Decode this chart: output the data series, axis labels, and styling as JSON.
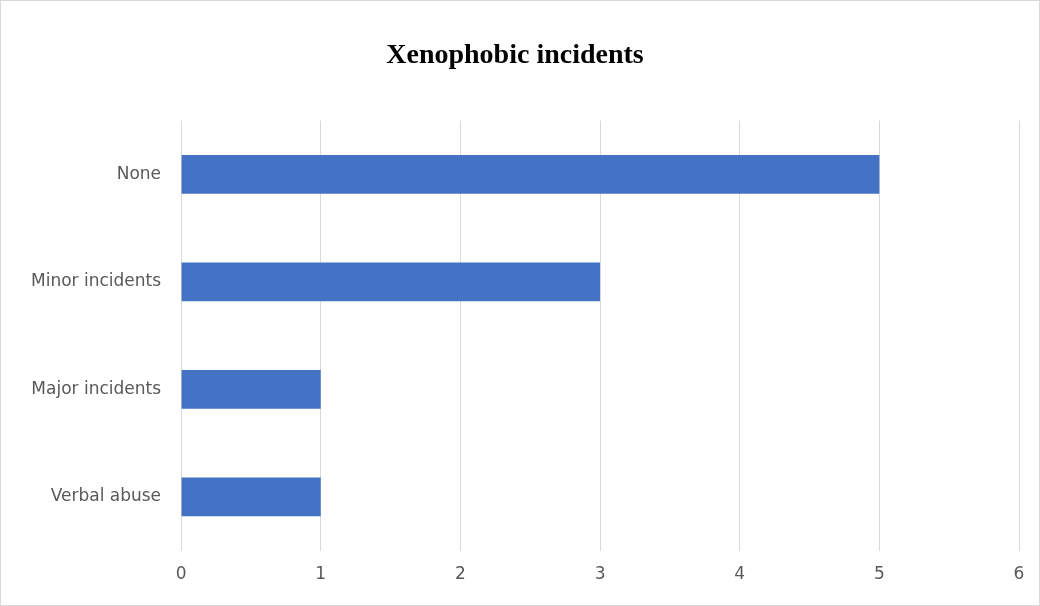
{
  "chart_data": {
    "type": "bar",
    "orientation": "horizontal",
    "title": "Xenophobic incidents",
    "categories": [
      "None",
      "Minor incidents",
      "Major incidents",
      "Verbal abuse"
    ],
    "values": [
      5,
      3,
      1,
      1
    ],
    "color": "#4472c4",
    "xlim": [
      0,
      6
    ],
    "xticks": [
      0,
      1,
      2,
      3,
      4,
      5,
      6
    ],
    "grid": "x",
    "legend": false
  }
}
